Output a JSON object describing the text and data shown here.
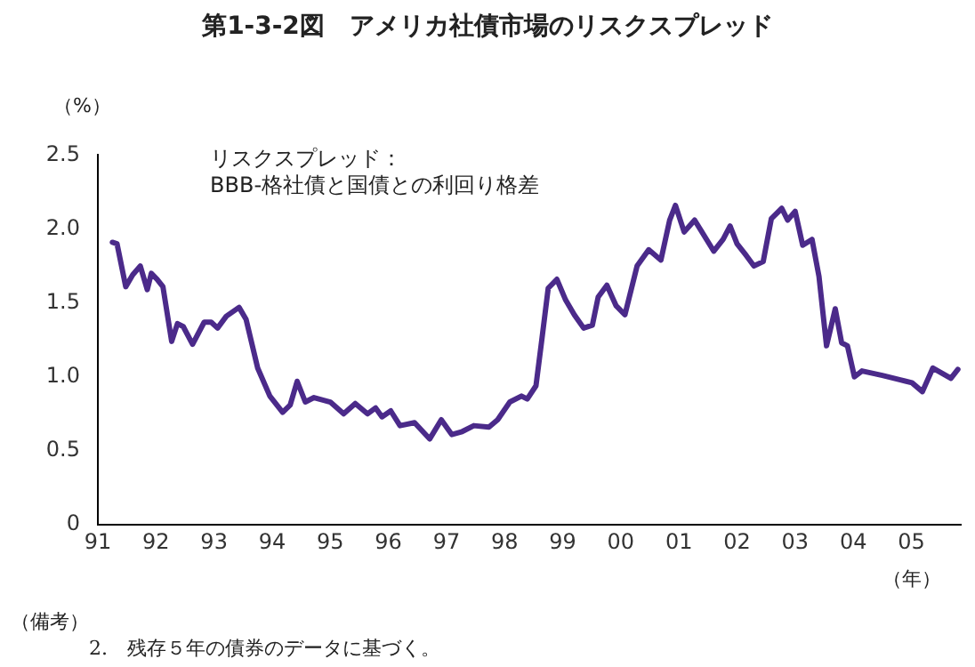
{
  "chart_data": {
    "type": "line",
    "title": "第1-3-2図　アメリカ社債市場のリスクスプレッド",
    "ylabel": "（%）",
    "xlabel": "（年）",
    "annotations": [
      "リスクスプレッド：\nBBB-格社債と国債との利回り格差",
      "（備考）",
      "2.　残存５年の債券のデータに基づく。"
    ],
    "xlim": [
      1991,
      2005.85
    ],
    "xticks": [
      {
        "value": 1991,
        "label": "91"
      },
      {
        "value": 1992,
        "label": "92"
      },
      {
        "value": 1993,
        "label": "93"
      },
      {
        "value": 1994,
        "label": "94"
      },
      {
        "value": 1995,
        "label": "95"
      },
      {
        "value": 1996,
        "label": "96"
      },
      {
        "value": 1997,
        "label": "97"
      },
      {
        "value": 1998,
        "label": "98"
      },
      {
        "value": 1999,
        "label": "99"
      },
      {
        "value": 2000,
        "label": "00"
      },
      {
        "value": 2001,
        "label": "01"
      },
      {
        "value": 2002,
        "label": "02"
      },
      {
        "value": 2003,
        "label": "03"
      },
      {
        "value": 2004,
        "label": "04"
      },
      {
        "value": 2005,
        "label": "05"
      }
    ],
    "ylim": [
      0,
      2.5
    ],
    "yticks": [
      0,
      0.5,
      {
        "value": 1,
        "label": "1.0"
      },
      1.5,
      {
        "value": 2,
        "label": "2.0"
      },
      2.5
    ],
    "grid": false,
    "legend": false,
    "marker": "none",
    "line_style": "solid",
    "series": [
      {
        "color": "#4b2a8a",
        "x": [
          1991.25,
          1991.33,
          1991.48,
          1991.6,
          1991.73,
          1991.85,
          1991.92,
          1992.02,
          1992.12,
          1992.27,
          1992.37,
          1992.47,
          1992.63,
          1992.83,
          1992.95,
          1993.06,
          1993.21,
          1993.43,
          1993.55,
          1993.75,
          1993.96,
          1994.18,
          1994.31,
          1994.43,
          1994.57,
          1994.72,
          1995.0,
          1995.23,
          1995.43,
          1995.64,
          1995.78,
          1995.89,
          1996.04,
          1996.2,
          1996.45,
          1996.71,
          1996.91,
          1997.09,
          1997.27,
          1997.47,
          1997.73,
          1997.88,
          1998.09,
          1998.29,
          1998.39,
          1998.54,
          1998.64,
          1998.75,
          1998.9,
          1999.05,
          1999.2,
          1999.36,
          1999.51,
          1999.61,
          1999.76,
          1999.92,
          2000.07,
          2000.28,
          2000.48,
          2000.69,
          2000.84,
          2000.94,
          2001.09,
          2001.27,
          2001.6,
          2001.76,
          2001.88,
          2002.0,
          2002.16,
          2002.29,
          2002.45,
          2002.59,
          2002.77,
          2002.87,
          2003.0,
          2003.13,
          2003.29,
          2003.41,
          2003.54,
          2003.69,
          2003.8,
          2003.9,
          2004.02,
          2004.15,
          2004.5,
          2004.81,
          2005.01,
          2005.19,
          2005.37,
          2005.68,
          2005.8
        ],
        "values": [
          1.91,
          1.9,
          1.61,
          1.69,
          1.75,
          1.59,
          1.7,
          1.66,
          1.61,
          1.24,
          1.36,
          1.34,
          1.22,
          1.37,
          1.37,
          1.33,
          1.41,
          1.47,
          1.39,
          1.06,
          0.87,
          0.76,
          0.81,
          0.97,
          0.83,
          0.86,
          0.83,
          0.75,
          0.82,
          0.75,
          0.79,
          0.73,
          0.77,
          0.67,
          0.69,
          0.58,
          0.71,
          0.61,
          0.63,
          0.67,
          0.66,
          0.71,
          0.83,
          0.87,
          0.85,
          0.94,
          1.25,
          1.6,
          1.66,
          1.52,
          1.42,
          1.33,
          1.35,
          1.54,
          1.62,
          1.48,
          1.42,
          1.75,
          1.86,
          1.79,
          2.06,
          2.16,
          1.98,
          2.06,
          1.85,
          1.93,
          2.02,
          1.9,
          1.82,
          1.75,
          1.78,
          2.07,
          2.14,
          2.06,
          2.12,
          1.89,
          1.93,
          1.68,
          1.21,
          1.46,
          1.23,
          1.21,
          1.0,
          1.04,
          1.01,
          0.98,
          0.96,
          0.9,
          1.06,
          0.99,
          1.05
        ]
      }
    ]
  }
}
